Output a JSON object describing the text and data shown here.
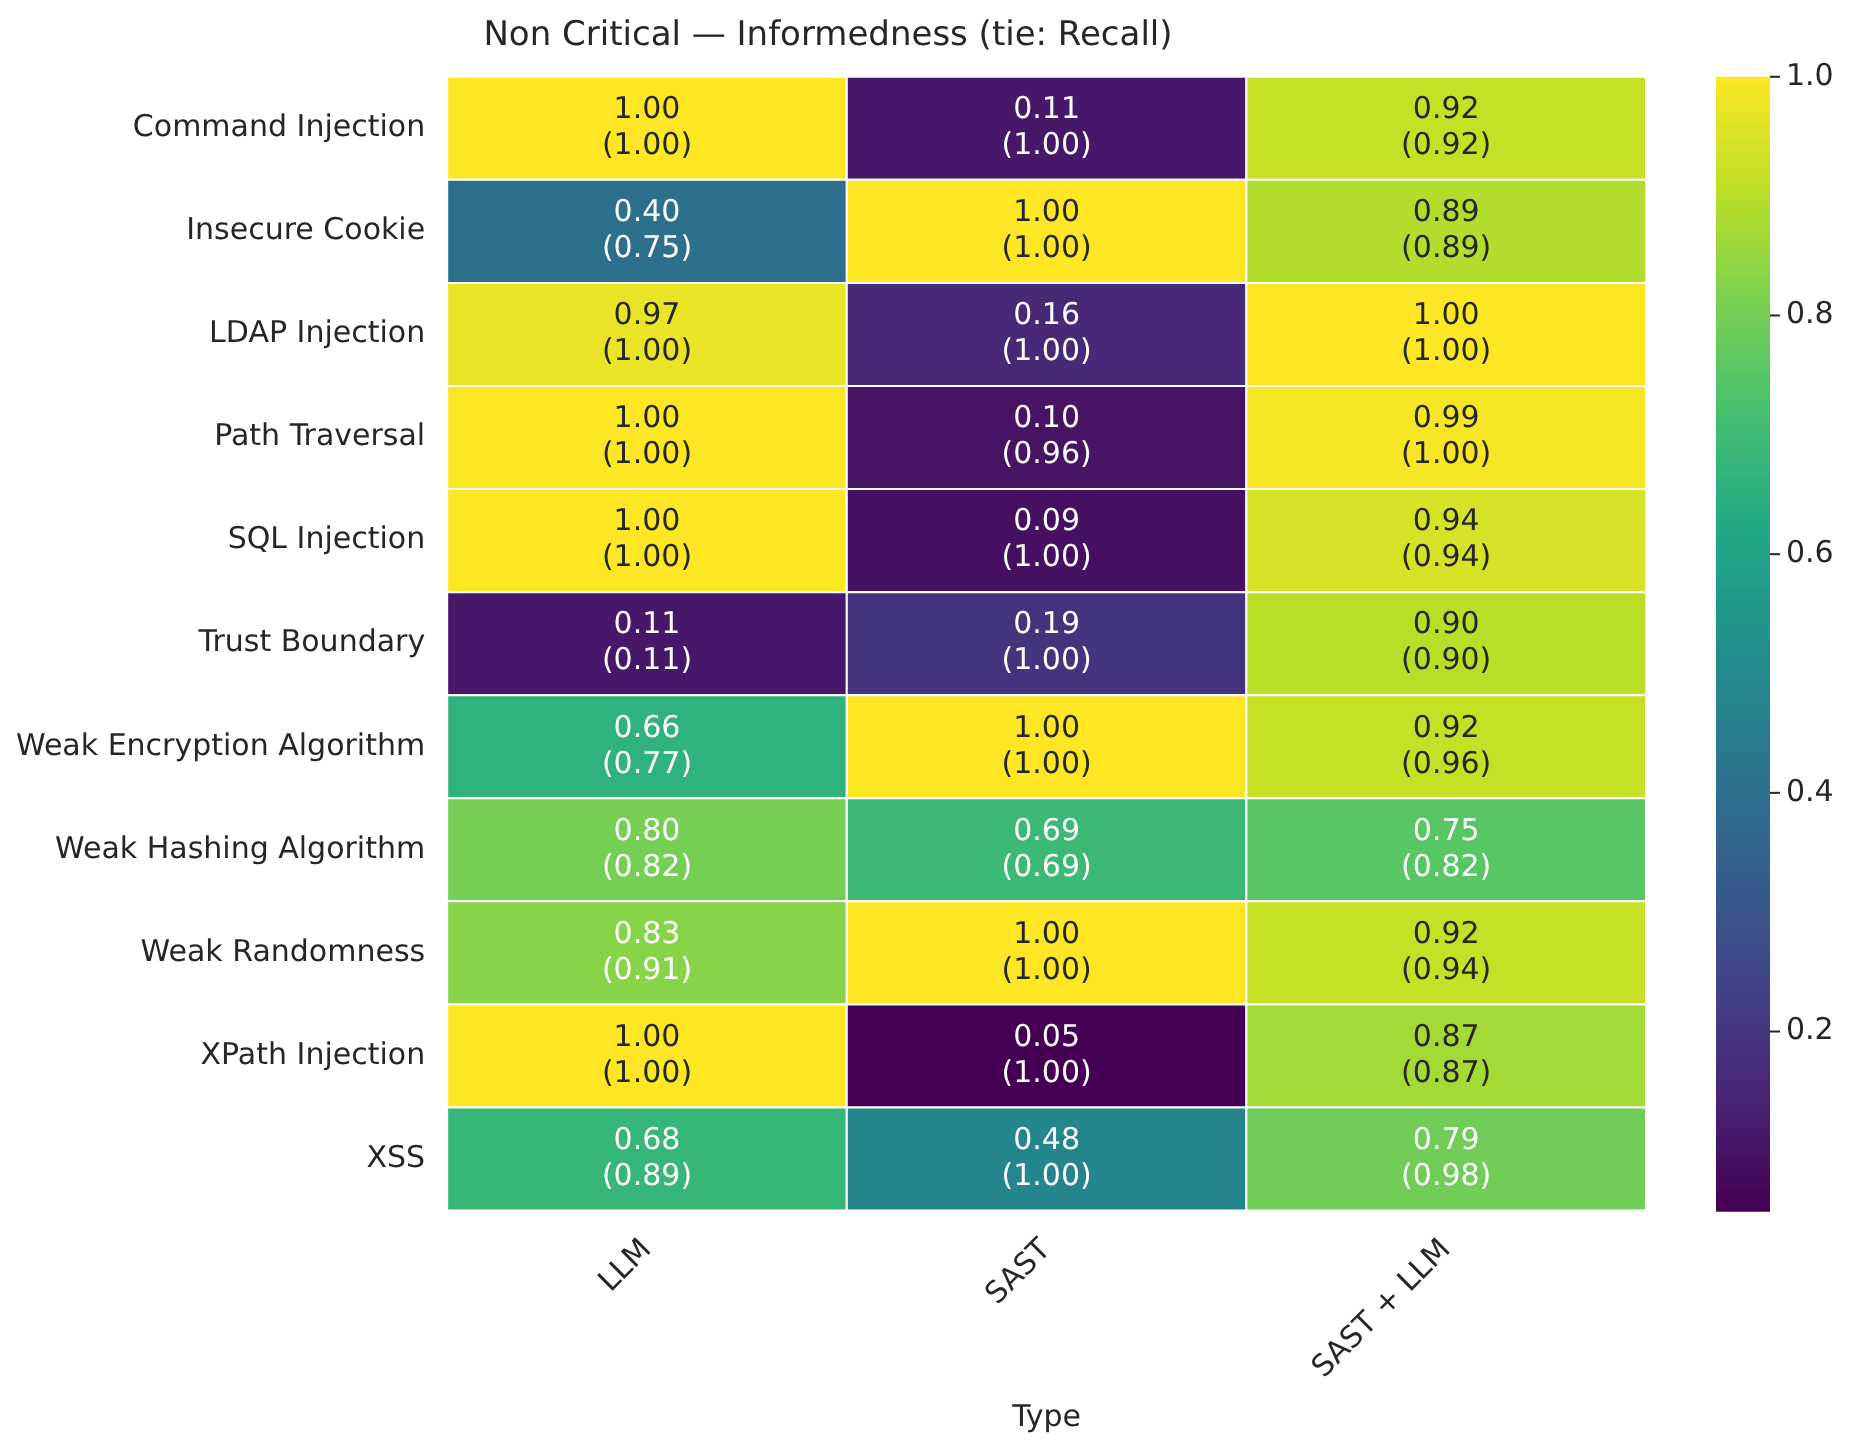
{
  "chart_data": {
    "type": "heatmap",
    "title": "Non Critical — Informedness (tie: Recall)",
    "xlabel": "Type",
    "categories": [
      "LLM",
      "SAST",
      "SAST + LLM"
    ],
    "y_categories": [
      "Command Injection",
      "Insecure Cookie",
      "LDAP Injection",
      "Path Traversal",
      "SQL Injection",
      "Trust Boundary",
      "Weak Encryption Algorithm",
      "Weak Hashing Algorithm",
      "Weak Randomness",
      "XPath Injection",
      "XSS"
    ],
    "cells": [
      [
        1.0,
        0.11,
        0.92
      ],
      [
        0.4,
        1.0,
        0.89
      ],
      [
        0.97,
        0.16,
        1.0
      ],
      [
        1.0,
        0.1,
        0.99
      ],
      [
        1.0,
        0.09,
        0.94
      ],
      [
        0.11,
        0.19,
        0.9
      ],
      [
        0.66,
        1.0,
        0.92
      ],
      [
        0.8,
        0.69,
        0.75
      ],
      [
        0.83,
        1.0,
        0.92
      ],
      [
        1.0,
        0.05,
        0.87
      ],
      [
        0.68,
        0.48,
        0.79
      ]
    ],
    "cell_labels": [
      [
        "1.00\n(1.00)",
        "0.11\n(1.00)",
        "0.92\n(0.92)"
      ],
      [
        "0.40\n(0.75)",
        "1.00\n(1.00)",
        "0.89\n(0.89)"
      ],
      [
        "0.97\n(1.00)",
        "0.16\n(1.00)",
        "1.00\n(1.00)"
      ],
      [
        "1.00\n(1.00)",
        "0.10\n(0.96)",
        "0.99\n(1.00)"
      ],
      [
        "1.00\n(1.00)",
        "0.09\n(1.00)",
        "0.94\n(0.94)"
      ],
      [
        "0.11\n(0.11)",
        "0.19\n(1.00)",
        "0.90\n(0.90)"
      ],
      [
        "0.66\n(0.77)",
        "1.00\n(1.00)",
        "0.92\n(0.96)"
      ],
      [
        "0.80\n(0.82)",
        "0.69\n(0.69)",
        "0.75\n(0.82)"
      ],
      [
        "0.83\n(0.91)",
        "1.00\n(1.00)",
        "0.92\n(0.94)"
      ],
      [
        "1.00\n(1.00)",
        "0.05\n(1.00)",
        "0.87\n(0.87)"
      ],
      [
        "0.68\n(0.89)",
        "0.48\n(1.00)",
        "0.79\n(0.98)"
      ]
    ],
    "clim": [
      0.05,
      1.0
    ],
    "cticks": [
      0.2,
      0.4,
      0.6,
      0.8,
      {
        "value": 1,
        "label": "1.0"
      }
    ]
  }
}
